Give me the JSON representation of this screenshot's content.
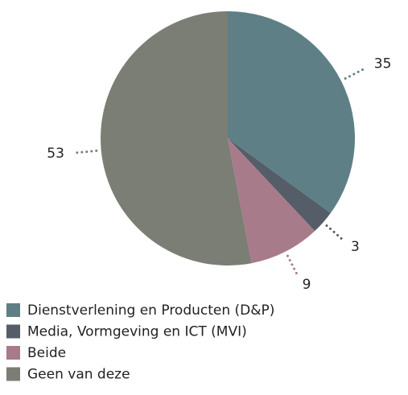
{
  "chart_data": {
    "type": "pie",
    "categories": [
      "Dienstverlening en Producten (D&P)",
      "Media, Vormgeving en ICT (MVI)",
      "Beide",
      "Geen van deze"
    ],
    "values": [
      35,
      3,
      9,
      53
    ],
    "colors": [
      "#5f7f86",
      "#545d68",
      "#a87b8a",
      "#7a7e74"
    ],
    "legend": "bottom"
  }
}
